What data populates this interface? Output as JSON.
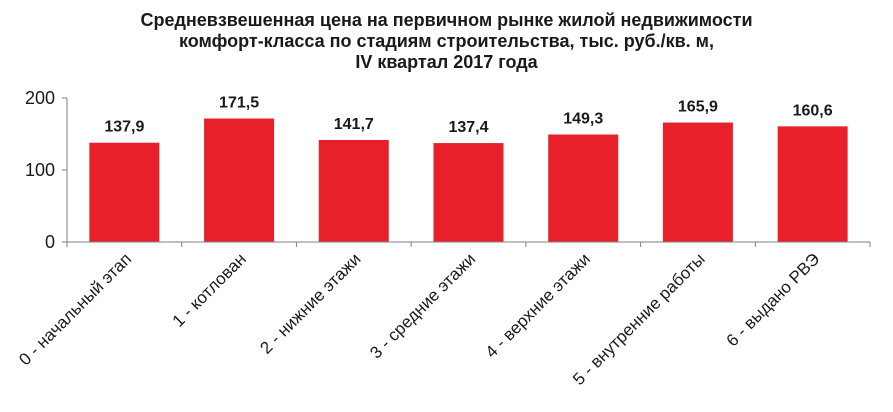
{
  "chart_data": {
    "type": "bar",
    "title_lines": [
      "Средневзвешенная цена на первичном рынке жилой недвижимости",
      "комфорт-класса по стадиям  строительства, тыс. руб./кв. м,",
      "IV квартал 2017 года"
    ],
    "categories": [
      "0 - начальный этап",
      "1 - котлован",
      "2 - нижние этажи",
      "3 - средние этажи",
      "4 - верхние этажи",
      "5 - внутренние работы",
      "6 - выдано РВЭ"
    ],
    "values": [
      137.9,
      171.5,
      141.7,
      137.4,
      149.3,
      165.9,
      160.6
    ],
    "value_labels": [
      "137,9",
      "171,5",
      "141,7",
      "137,4",
      "149,3",
      "165,9",
      "160,6"
    ],
    "ylim": [
      0,
      200
    ],
    "yticks": [
      0,
      100,
      200
    ],
    "grid": false,
    "bar_color": "#e8202a",
    "axis_color": "#808080"
  }
}
